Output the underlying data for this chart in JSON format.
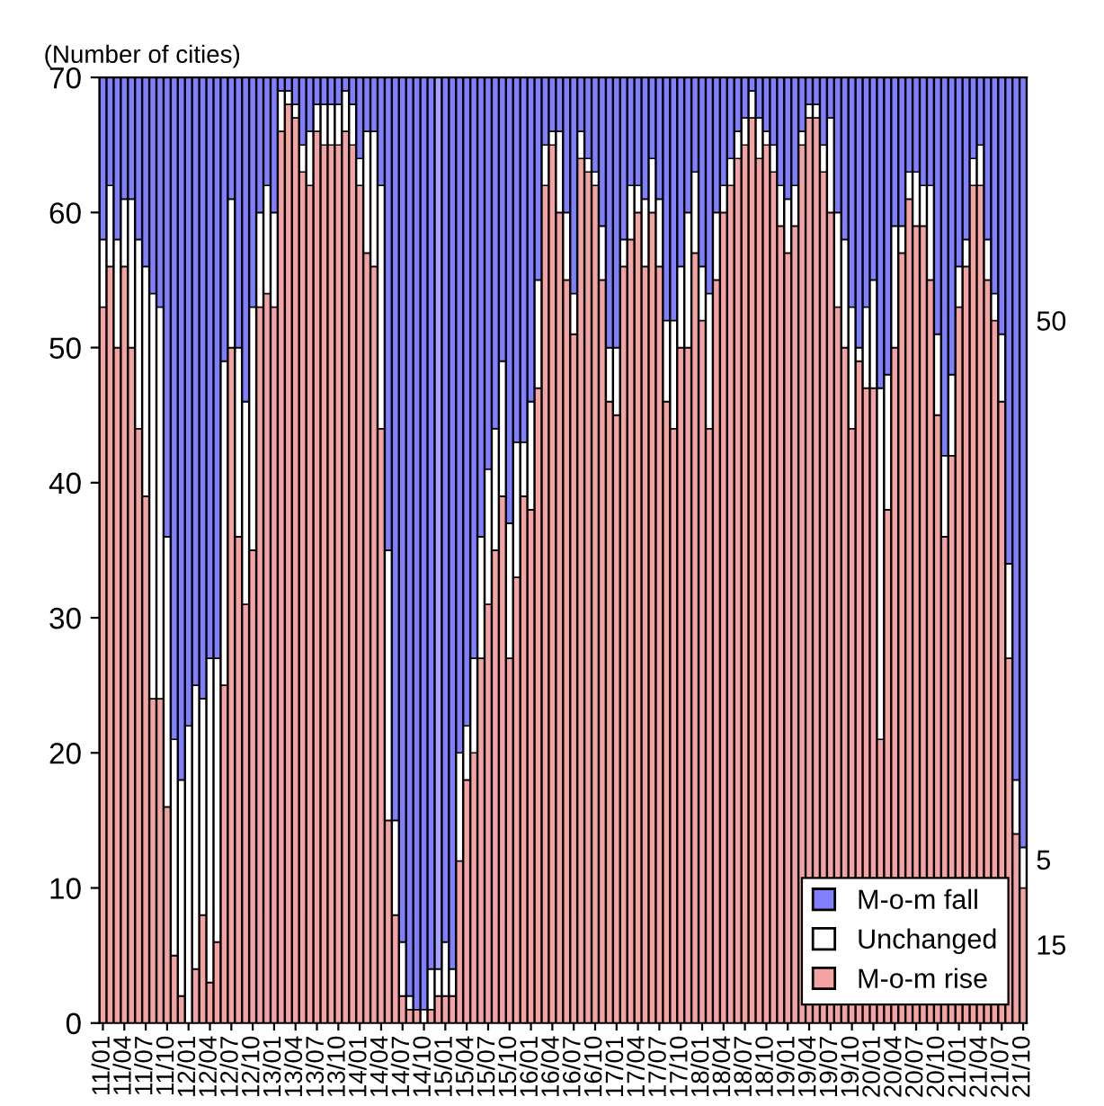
{
  "chart_data": {
    "type": "bar",
    "stacked": true,
    "ylabel": "(Number of cities)",
    "categories": [
      "11/01",
      null,
      null,
      "11/04",
      null,
      null,
      "11/07",
      null,
      null,
      "11/10",
      null,
      null,
      "12/01",
      null,
      null,
      "12/04",
      null,
      null,
      "12/07",
      null,
      null,
      "12/10",
      null,
      null,
      "13/01",
      null,
      null,
      "13/04",
      null,
      null,
      "13/07",
      null,
      null,
      "13/10",
      null,
      null,
      "14/01",
      null,
      null,
      "14/04",
      null,
      null,
      "14/07",
      null,
      null,
      "14/10",
      null,
      null,
      "15/01",
      null,
      null,
      "15/04",
      null,
      null,
      "15/07",
      null,
      null,
      "15/10",
      null,
      null,
      "16/01",
      null,
      null,
      "16/04",
      null,
      null,
      "16/07",
      null,
      null,
      "16/10",
      null,
      null,
      "17/01",
      null,
      null,
      "17/04",
      null,
      null,
      "17/07",
      null,
      null,
      "17/10",
      null,
      null,
      "18/01",
      null,
      null,
      "18/04",
      null,
      null,
      "18/07",
      null,
      null,
      "18/10",
      null,
      null,
      "19/01",
      null,
      null,
      "19/04",
      null,
      null,
      "19/07",
      null,
      null,
      "19/10",
      null,
      null,
      "20/01",
      null,
      null,
      "20/04",
      null,
      null,
      "20/07",
      null,
      null,
      "20/10",
      null,
      null,
      "21/01",
      null,
      null,
      "21/04",
      null,
      null,
      "21/07",
      null,
      null,
      "21/10"
    ],
    "series": [
      {
        "name": "M-o-m rise",
        "color": "#f4a3a3",
        "values": [
          53,
          56,
          50,
          56,
          50,
          44,
          39,
          24,
          24,
          16,
          5,
          2,
          0,
          4,
          8,
          3,
          6,
          25,
          50,
          36,
          31,
          35,
          53,
          54,
          53,
          66,
          68,
          67,
          63,
          62,
          66,
          65,
          65,
          65,
          66,
          65,
          62,
          57,
          56,
          44,
          15,
          8,
          2,
          1,
          1,
          0,
          1,
          2,
          2,
          2,
          12,
          18,
          20,
          27,
          31,
          35,
          39,
          27,
          33,
          39,
          38,
          47,
          62,
          65,
          60,
          55,
          51,
          64,
          63,
          62,
          55,
          46,
          45,
          56,
          58,
          60,
          56,
          60,
          56,
          46,
          44,
          50,
          50,
          57,
          52,
          44,
          55,
          60,
          62,
          64,
          65,
          67,
          64,
          65,
          63,
          59,
          57,
          59,
          65,
          67,
          67,
          63,
          60,
          53,
          50,
          44,
          49,
          47,
          47,
          21,
          38,
          50,
          57,
          61,
          59,
          59,
          55,
          45,
          36,
          42,
          53,
          56,
          62,
          62,
          55,
          52,
          46,
          27,
          14,
          10
        ]
      },
      {
        "name": "Unchanged",
        "color": "#ffffff",
        "values": [
          5,
          6,
          8,
          5,
          11,
          14,
          17,
          30,
          29,
          20,
          16,
          16,
          22,
          21,
          16,
          24,
          21,
          24,
          11,
          14,
          15,
          18,
          7,
          8,
          7,
          3,
          1,
          1,
          2,
          4,
          2,
          3,
          3,
          3,
          3,
          3,
          2,
          9,
          10,
          18,
          20,
          7,
          4,
          1,
          0,
          1,
          3,
          2,
          4,
          2,
          8,
          4,
          7,
          9,
          10,
          9,
          10,
          10,
          10,
          4,
          8,
          8,
          3,
          1,
          6,
          5,
          3,
          2,
          1,
          1,
          4,
          4,
          5,
          2,
          4,
          2,
          5,
          4,
          5,
          6,
          8,
          6,
          10,
          6,
          4,
          10,
          5,
          2,
          2,
          2,
          2,
          2,
          3,
          1,
          2,
          3,
          4,
          3,
          1,
          1,
          1,
          2,
          7,
          7,
          8,
          9,
          1,
          6,
          8,
          26,
          10,
          9,
          2,
          2,
          4,
          3,
          7,
          6,
          6,
          6,
          3,
          2,
          2,
          3,
          3,
          2,
          5,
          7,
          4,
          3
        ]
      },
      {
        "name": "M-o-m fall",
        "color": "#8080ff",
        "values": [
          12,
          8,
          12,
          9,
          9,
          12,
          14,
          16,
          17,
          34,
          49,
          52,
          48,
          45,
          46,
          43,
          43,
          21,
          9,
          20,
          24,
          17,
          10,
          8,
          10,
          1,
          1,
          2,
          5,
          4,
          2,
          2,
          2,
          2,
          1,
          2,
          6,
          4,
          4,
          8,
          35,
          55,
          64,
          68,
          69,
          69,
          66,
          66,
          64,
          66,
          50,
          48,
          43,
          34,
          29,
          26,
          21,
          33,
          27,
          27,
          24,
          15,
          5,
          4,
          4,
          10,
          16,
          4,
          6,
          7,
          11,
          20,
          20,
          12,
          8,
          8,
          9,
          6,
          9,
          18,
          18,
          14,
          10,
          7,
          14,
          16,
          10,
          8,
          6,
          4,
          3,
          1,
          3,
          4,
          5,
          8,
          9,
          8,
          4,
          2,
          2,
          5,
          3,
          10,
          12,
          17,
          20,
          17,
          15,
          23,
          22,
          11,
          11,
          7,
          7,
          8,
          8,
          19,
          28,
          22,
          14,
          12,
          6,
          5,
          12,
          16,
          19,
          36,
          52,
          57
        ],
        "colors": [
          "#8080ff",
          "#8080ff",
          "#8080ff",
          "#8080ff",
          "#8080ff",
          "#8080ff",
          "#8080ff",
          "#8080ff",
          "#8080ff",
          "#8080ff",
          "#8080ff",
          "#8080ff",
          "#8080ff",
          "#8080ff",
          "#8080ff",
          "#8080ff",
          "#8080ff",
          "#8080ff",
          "#8080ff",
          "#8080ff",
          "#8080ff",
          "#8080ff",
          "#8080ff",
          "#8080ff",
          "#8080ff",
          "#8080ff",
          "#8080ff",
          "#8080ff",
          "#8080ff",
          "#8080ff",
          "#8080ff",
          "#8080ff",
          "#8080ff",
          "#8080ff",
          "#8080ff",
          "#8080ff",
          "#8080ff",
          "#8080ff",
          "#8080ff",
          "#8080ff",
          "#8080ff",
          "#8080ff",
          "#8080ff",
          "#8080ff",
          "#8080ff",
          "#8080ff",
          "#8080ff",
          "#a3a3ff",
          "#8080ff",
          "#8080ff",
          "#8080ff",
          "#8080ff",
          "#8080ff",
          "#8080ff",
          "#8080ff",
          "#8080ff",
          "#8080ff",
          "#8080ff",
          "#8080ff",
          "#8080ff",
          "#8080ff",
          "#8080ff",
          "#8080ff",
          "#8080ff",
          "#8080ff",
          "#8080ff",
          "#8080ff",
          "#8080ff",
          "#8080ff",
          "#8080ff",
          "#8080ff",
          "#8080ff",
          "#8080ff",
          "#8080ff",
          "#8080ff",
          "#8080ff",
          "#8080ff",
          "#8080ff",
          "#8080ff",
          "#8080ff",
          "#8080ff",
          "#8080ff",
          "#8080ff",
          "#8080ff",
          "#8080ff",
          "#8080ff",
          "#8080ff",
          "#8080ff",
          "#8080ff",
          "#8080ff",
          "#8080ff",
          "#8080ff",
          "#8080ff",
          "#8080ff",
          "#8080ff",
          "#8080ff",
          "#8080ff",
          "#8080ff",
          "#8080ff",
          "#8080ff",
          "#8080ff",
          "#8080ff",
          "#8080ff",
          "#8080ff",
          "#8080ff",
          "#8080ff",
          "#8080ff",
          "#8080ff",
          "#8080ff",
          "#8080ff",
          "#8080ff",
          "#8080ff",
          "#8080ff",
          "#8080ff",
          "#8080ff",
          "#8080ff",
          "#8080ff",
          "#8080ff",
          "#8080ff",
          "#8080ff",
          "#8080ff",
          "#8080ff",
          "#8080ff",
          "#8080ff",
          "#8080ff",
          "#8080ff",
          "#8080ff",
          "#8080ff",
          "#8080ff",
          "#8080ff"
        ]
      }
    ],
    "ylim": [
      0,
      70
    ],
    "yticks": [
      0,
      10,
      20,
      30,
      40,
      50,
      60,
      70
    ],
    "grid": false,
    "legend": "bottom right",
    "annotations": [
      "50",
      "5",
      "15"
    ]
  }
}
